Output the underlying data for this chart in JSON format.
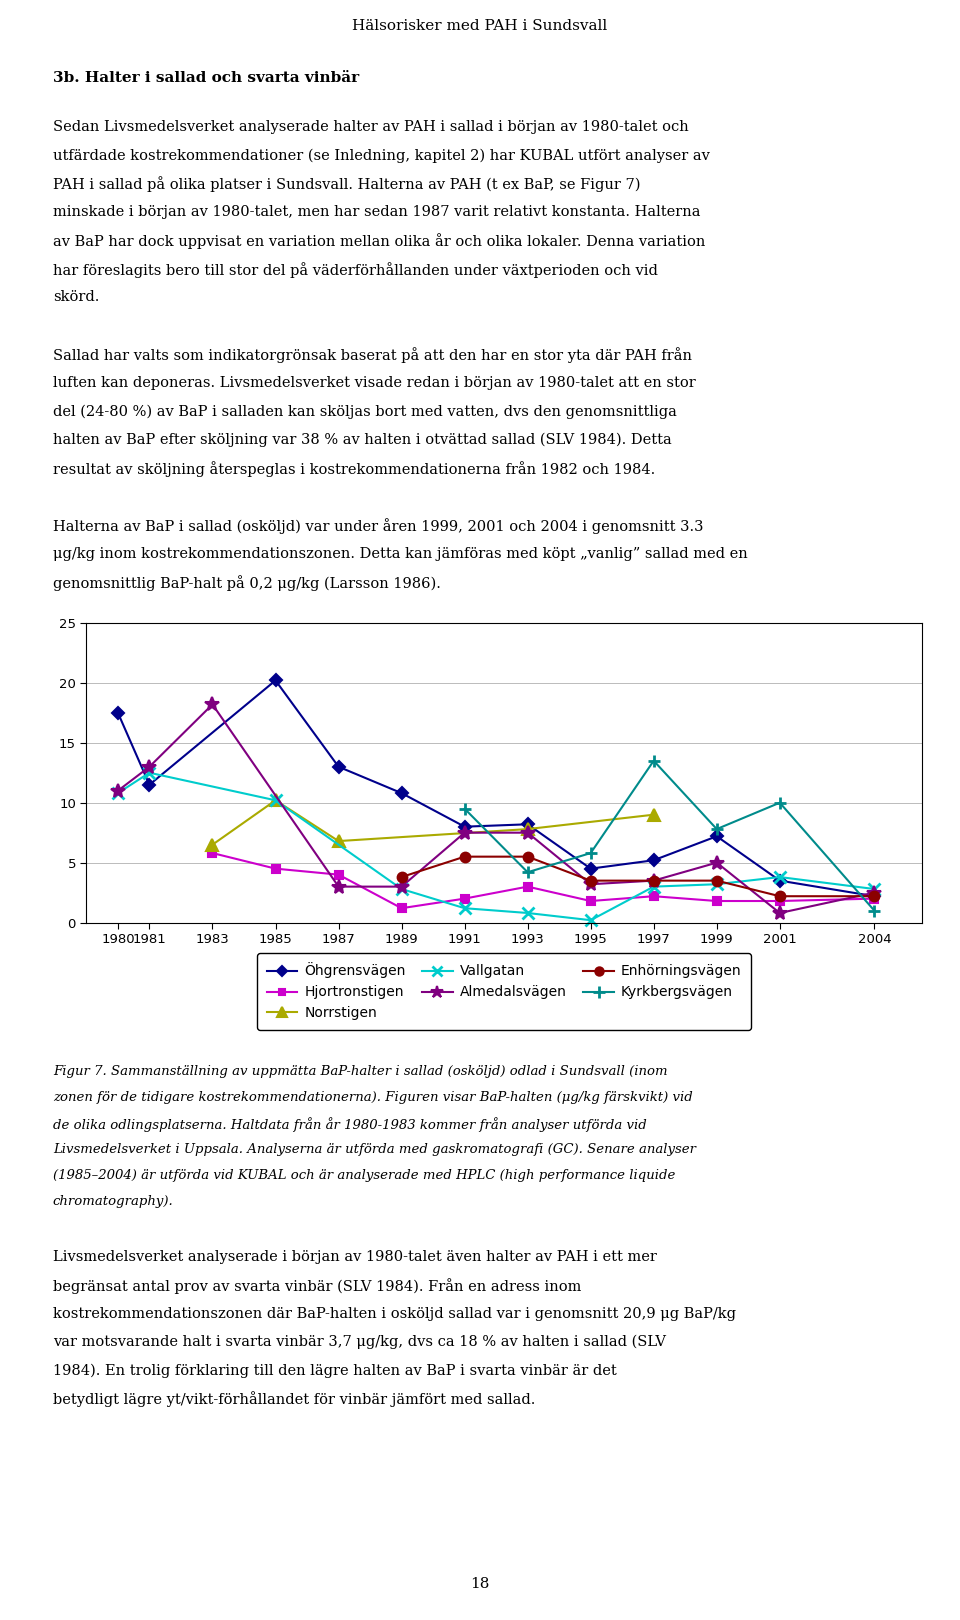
{
  "page_title": "Hälsorisker med PAH i Sundsvall",
  "section_title": "3b. Halter i sallad och svarta vinbär",
  "paragraph1": "Sedan Livsmedelsverket analyserade halter av PAH i sallad i början av 1980-talet och utfärdade kostrekommendationer (se Inledning, kapitel 2) har KUBAL utfört analyser av PAH i sallad på olika platser i Sundsvall. Halterna av PAH (t ex BaP, se Figur 7) minskade i början av 1980-talet, men har sedan 1987 varit relativt konstanta. Halterna av BaP har dock uppvisat en variation mellan olika år och olika lokaler. Denna variation har föreslagits bero till stor del på väderförhållanden under växtperioden och vid skörd.",
  "paragraph2": "Sallad har valts som indikatorgrönsak baserat på att den har en stor yta där PAH från luften kan deponeras. Livsmedelsverket visade redan i början av 1980-talet att en stor del (24-80 %) av BaP i salladen kan sköljas bort med vatten, dvs den genomsnittliga halten av BaP efter sköljning var 38 % av halten i otvättad sallad (SLV 1984). Detta resultat av sköljning återspeglas i kostrekommendationerna från 1982 och 1984.",
  "paragraph3": "Halterna av BaP i sallad (osköljd) var under åren 1999, 2001 och 2004 i genomsnitt 3.3 μg/kg inom kostrekommendationszonen. Detta kan jämföras med köpt „vanlig” sallad med en genomsnittlig BaP-halt på 0,2 μg/kg (Larsson 1986).",
  "years": [
    1980,
    1981,
    1983,
    1985,
    1987,
    1989,
    1991,
    1993,
    1995,
    1997,
    1999,
    2001,
    2004
  ],
  "series": {
    "Öhgrensvägen": {
      "color": "#00008B",
      "marker": "D",
      "markersize": 6,
      "linewidth": 1.5,
      "values": [
        17.5,
        11.5,
        null,
        20.2,
        13.0,
        10.8,
        8.0,
        8.2,
        4.5,
        5.2,
        7.2,
        3.5,
        2.2
      ]
    },
    "Hjortronstigen": {
      "color": "#CC00CC",
      "marker": "s",
      "markersize": 6,
      "linewidth": 1.5,
      "values": [
        null,
        null,
        5.8,
        4.5,
        4.0,
        1.2,
        2.0,
        3.0,
        1.8,
        2.2,
        1.8,
        1.8,
        2.0
      ]
    },
    "Norrstigen": {
      "color": "#AAAA00",
      "marker": "^",
      "markersize": 8,
      "linewidth": 1.5,
      "values": [
        null,
        null,
        6.5,
        10.2,
        6.8,
        null,
        null,
        7.8,
        null,
        9.0,
        null,
        null,
        null
      ]
    },
    "Vallgatan": {
      "color": "#00CCCC",
      "marker": "x",
      "markersize": 8,
      "linewidth": 1.5,
      "markeredgewidth": 2,
      "values": [
        10.8,
        12.5,
        null,
        10.2,
        null,
        2.8,
        1.2,
        0.8,
        0.2,
        3.0,
        3.2,
        3.8,
        2.8
      ]
    },
    "Almedalsvägen": {
      "color": "#800080",
      "marker": "*",
      "markersize": 10,
      "linewidth": 1.5,
      "values": [
        11.0,
        13.0,
        18.2,
        null,
        3.0,
        3.0,
        7.5,
        7.5,
        3.2,
        3.5,
        5.0,
        0.8,
        2.5
      ]
    },
    "Enhörningsvägen": {
      "color": "#8B0000",
      "marker": "o",
      "markersize": 7,
      "linewidth": 1.5,
      "values": [
        null,
        null,
        null,
        null,
        null,
        3.8,
        5.5,
        5.5,
        3.5,
        3.5,
        3.5,
        2.2,
        2.2
      ]
    },
    "Kyrkbergsvägen": {
      "color": "#008B8B",
      "marker": "+",
      "markersize": 9,
      "linewidth": 1.5,
      "markeredgewidth": 2,
      "values": [
        null,
        null,
        null,
        null,
        null,
        null,
        9.5,
        4.2,
        5.8,
        13.5,
        7.8,
        10.0,
        1.0
      ]
    }
  },
  "ylim": [
    0,
    25
  ],
  "yticks": [
    0,
    5,
    10,
    15,
    20,
    25
  ],
  "fig_caption": "Figur 7. Sammanställning av uppmätta BaP-halter i sallad (osköljd) odlad i Sundsvall (inom zonen för de tidigare kostrekommendationerna). Figuren visar BaP-halten (μg/kg färskvikt) vid de olika odlingsplatserna. Haltdata från år 1980-1983 kommer från analyser utförda vid Livsmedelsverket i Uppsala. Analyserna är utförda med gaskromatografi (GC). Senare analyser (1985–2004) är utförda vid KUBAL och är analyserade med HPLC (high performance liquide chromatography).",
  "paragraph4": "Livsmedelsverket analyserade i början av 1980-talet även halter av PAH i ett mer begränsat antal prov av svarta vinbär (SLV 1984). Från en adress inom kostrekommendationszonen där BaP-halten i osköljd sallad var i genomsnitt 20,9 μg BaP/kg var motsvarande halt i svarta vinbär 3,7 μg/kg, dvs ca 18 % av halten i sallad (SLV 1984). En trolig förklaring till den lägre halten av BaP i svarta vinbär är det betydligt lägre yt/vikt-förhållandet för vinbär jämfört med sallad.",
  "page_number": "18",
  "background_color": "#ffffff",
  "text_color": "#000000"
}
